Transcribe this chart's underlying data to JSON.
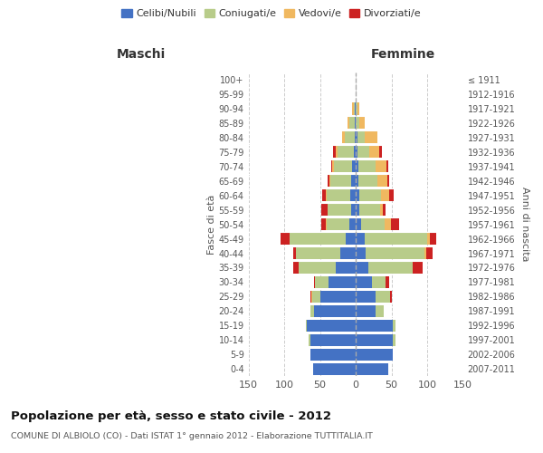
{
  "age_groups": [
    "0-4",
    "5-9",
    "10-14",
    "15-19",
    "20-24",
    "25-29",
    "30-34",
    "35-39",
    "40-44",
    "45-49",
    "50-54",
    "55-59",
    "60-64",
    "65-69",
    "70-74",
    "75-79",
    "80-84",
    "85-89",
    "90-94",
    "95-99",
    "100+"
  ],
  "birth_years": [
    "2007-2011",
    "2002-2006",
    "1997-2001",
    "1992-1996",
    "1987-1991",
    "1982-1986",
    "1977-1981",
    "1972-1976",
    "1967-1971",
    "1962-1966",
    "1957-1961",
    "1952-1956",
    "1947-1951",
    "1942-1946",
    "1937-1941",
    "1932-1936",
    "1927-1931",
    "1922-1926",
    "1917-1921",
    "1912-1916",
    "≤ 1911"
  ],
  "maschi": {
    "celibi": [
      60,
      63,
      64,
      68,
      58,
      50,
      38,
      28,
      22,
      14,
      9,
      7,
      8,
      6,
      5,
      3,
      2,
      2,
      1,
      0,
      0
    ],
    "coniugati": [
      0,
      0,
      2,
      2,
      5,
      11,
      19,
      52,
      62,
      78,
      32,
      32,
      33,
      30,
      26,
      22,
      13,
      7,
      2,
      0,
      0
    ],
    "vedovi": [
      0,
      0,
      0,
      0,
      0,
      1,
      0,
      0,
      0,
      1,
      1,
      1,
      1,
      1,
      2,
      3,
      4,
      2,
      2,
      0,
      0
    ],
    "divorziati": [
      0,
      0,
      0,
      0,
      0,
      2,
      2,
      7,
      4,
      12,
      6,
      8,
      5,
      2,
      2,
      4,
      0,
      0,
      0,
      0,
      0
    ]
  },
  "femmine": {
    "nubili": [
      45,
      52,
      52,
      52,
      28,
      28,
      23,
      18,
      14,
      12,
      7,
      5,
      5,
      3,
      3,
      2,
      2,
      0,
      0,
      0,
      0
    ],
    "coniugate": [
      0,
      0,
      3,
      4,
      11,
      20,
      19,
      62,
      82,
      88,
      33,
      29,
      30,
      27,
      24,
      17,
      10,
      5,
      2,
      0,
      0
    ],
    "vedove": [
      0,
      0,
      0,
      0,
      0,
      0,
      0,
      0,
      2,
      4,
      9,
      4,
      11,
      14,
      16,
      14,
      18,
      7,
      3,
      0,
      0
    ],
    "divorziate": [
      0,
      0,
      0,
      0,
      0,
      2,
      4,
      13,
      9,
      9,
      11,
      4,
      7,
      2,
      2,
      4,
      0,
      0,
      0,
      0,
      0
    ]
  },
  "colors": {
    "celibi_nubili": "#4472c4",
    "coniugati": "#b8cc8a",
    "vedovi": "#f0b860",
    "divorziati": "#cc2222"
  },
  "title": "Popolazione per età, sesso e stato civile - 2012",
  "subtitle": "COMUNE DI ALBIOLO (CO) - Dati ISTAT 1° gennaio 2012 - Elaborazione TUTTITALIA.IT",
  "ylabel_left": "Fasce di età",
  "ylabel_right": "Anni di nascita",
  "xlabel_left": "Maschi",
  "xlabel_right": "Femmine",
  "xlim": 150,
  "background_color": "#ffffff",
  "grid_color": "#cccccc"
}
